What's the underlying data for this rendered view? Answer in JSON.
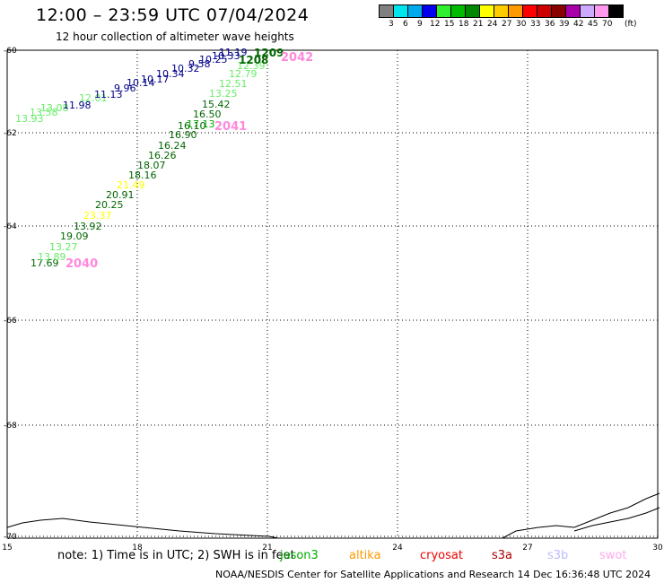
{
  "header": {
    "title": "12:00 – 23:59 UTC 07/04/2024",
    "subtitle": "12 hour collection of altimeter wave heights"
  },
  "legend": {
    "unit": "(ft)",
    "colors": [
      "#808080",
      "#00e5ee",
      "#00a8ee",
      "#0000ee",
      "#30ee30",
      "#00bb00",
      "#008800",
      "#ffff00",
      "#ffcc00",
      "#ff9900",
      "#ff0000",
      "#cc0000",
      "#880000",
      "#aa00aa",
      "#ccaaff",
      "#ff99ee",
      "#000000"
    ],
    "labels": [
      "3",
      "6",
      "9",
      "12",
      "15",
      "18",
      "21",
      "24",
      "27",
      "30",
      "33",
      "36",
      "39",
      "42",
      "45",
      "70"
    ]
  },
  "axes": {
    "x_ticks": [
      "15",
      "18",
      "21",
      "24",
      "27",
      "30"
    ],
    "y_ticks": [
      "-60",
      "-62",
      "-64",
      "-66",
      "-68",
      "-70"
    ]
  },
  "tracks": [
    {
      "id": "2040",
      "color": "#ff88dd",
      "points": [
        {
          "v": "17.69",
          "c": "#006600"
        },
        {
          "v": "13.89",
          "c": "#66ee66"
        },
        {
          "v": "13.27",
          "c": "#66ee66"
        },
        {
          "v": "19.09",
          "c": "#006600"
        },
        {
          "v": "13.92",
          "c": "#006600"
        },
        {
          "v": "23.37",
          "c": "#ffff00"
        },
        {
          "v": "20.25",
          "c": "#006600"
        },
        {
          "v": "20.91",
          "c": "#006600"
        },
        {
          "v": "21.49",
          "c": "#ffff00"
        },
        {
          "v": "18.16",
          "c": "#006600"
        },
        {
          "v": "18.07",
          "c": "#006600"
        },
        {
          "v": "16.26",
          "c": "#006600"
        },
        {
          "v": "16.24",
          "c": "#006600"
        },
        {
          "v": "16.90",
          "c": "#006600"
        },
        {
          "v": "16.10",
          "c": "#006600"
        },
        {
          "v": "17.13",
          "c": "#00aa00"
        },
        {
          "v": "16.50",
          "c": "#006600"
        },
        {
          "v": "15.42",
          "c": "#006600"
        }
      ]
    },
    {
      "id": "2041",
      "color": "#ff88dd",
      "points": [
        {
          "v": "13.25",
          "c": "#66ee66"
        },
        {
          "v": "12.51",
          "c": "#66ee66"
        },
        {
          "v": "12.79",
          "c": "#66ee66"
        },
        {
          "v": "12.39",
          "c": "#66ee66"
        },
        {
          "v": "1208",
          "c": "#006600"
        }
      ]
    },
    {
      "id": "2042",
      "color": "#ff88dd",
      "points": [
        {
          "v": "13.93",
          "c": "#66ee66"
        },
        {
          "v": "13.58",
          "c": "#66ee66"
        },
        {
          "v": "13.08",
          "c": "#66ee66"
        },
        {
          "v": "12.01",
          "c": "#66ee66"
        },
        {
          "v": "11.98",
          "c": "#000088"
        },
        {
          "v": "11.13",
          "c": "#000088"
        },
        {
          "v": "9.96",
          "c": "#000088"
        },
        {
          "v": "10.14",
          "c": "#000088"
        },
        {
          "v": "10.17",
          "c": "#000088"
        },
        {
          "v": "10.34",
          "c": "#000088"
        },
        {
          "v": "10.32",
          "c": "#000088"
        },
        {
          "v": "9.58",
          "c": "#000088"
        },
        {
          "v": "10.25",
          "c": "#000088"
        },
        {
          "v": "10.33",
          "c": "#000088"
        },
        {
          "v": "11.19",
          "c": "#000088"
        },
        {
          "v": "1209",
          "c": "#006600"
        }
      ]
    }
  ],
  "footer": {
    "note": "note:  1) Time is in UTC;  2) SWH is in feet",
    "satellites": [
      {
        "name": "jason3",
        "color": "#00aa00"
      },
      {
        "name": "altika",
        "color": "#ff9900"
      },
      {
        "name": "cryosat",
        "color": "#ee0000"
      },
      {
        "name": "s3a",
        "color": "#aa0000"
      },
      {
        "name": "s3b",
        "color": "#bbbbff"
      },
      {
        "name": "swot",
        "color": "#ffaaee"
      }
    ],
    "credit": "NOAA/NESDIS Center for Satellite Applications and Research    14 Dec 16:36:48 UTC 2024"
  }
}
